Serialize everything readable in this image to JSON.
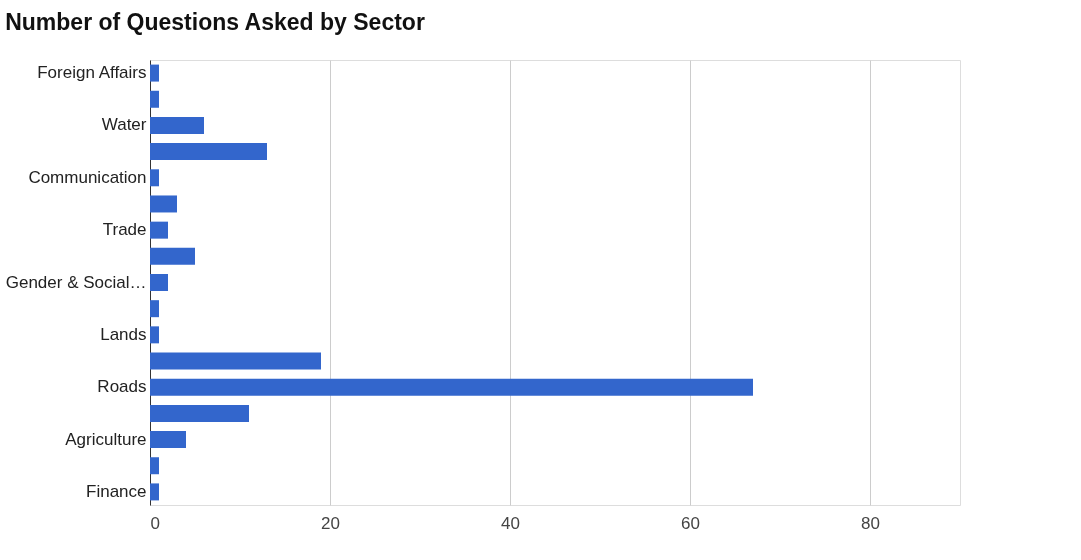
{
  "chart_data": {
    "type": "bar",
    "orientation": "horizontal",
    "title": "Number of Questions Asked by Sector",
    "categories": [
      "Foreign Affairs",
      null,
      "Water",
      null,
      "Communication",
      null,
      "Trade",
      null,
      "Gender & Social…",
      null,
      "Lands",
      null,
      "Roads",
      null,
      "Agriculture",
      null,
      "Finance"
    ],
    "values": [
      1,
      1,
      6,
      13,
      1,
      3,
      2,
      5,
      2,
      1,
      1,
      19,
      67,
      11,
      4,
      1,
      1
    ],
    "color": "#3366cc",
    "xlim": [
      0,
      90
    ],
    "xticks": [
      0,
      20,
      40,
      60,
      80
    ],
    "grid": "x"
  }
}
